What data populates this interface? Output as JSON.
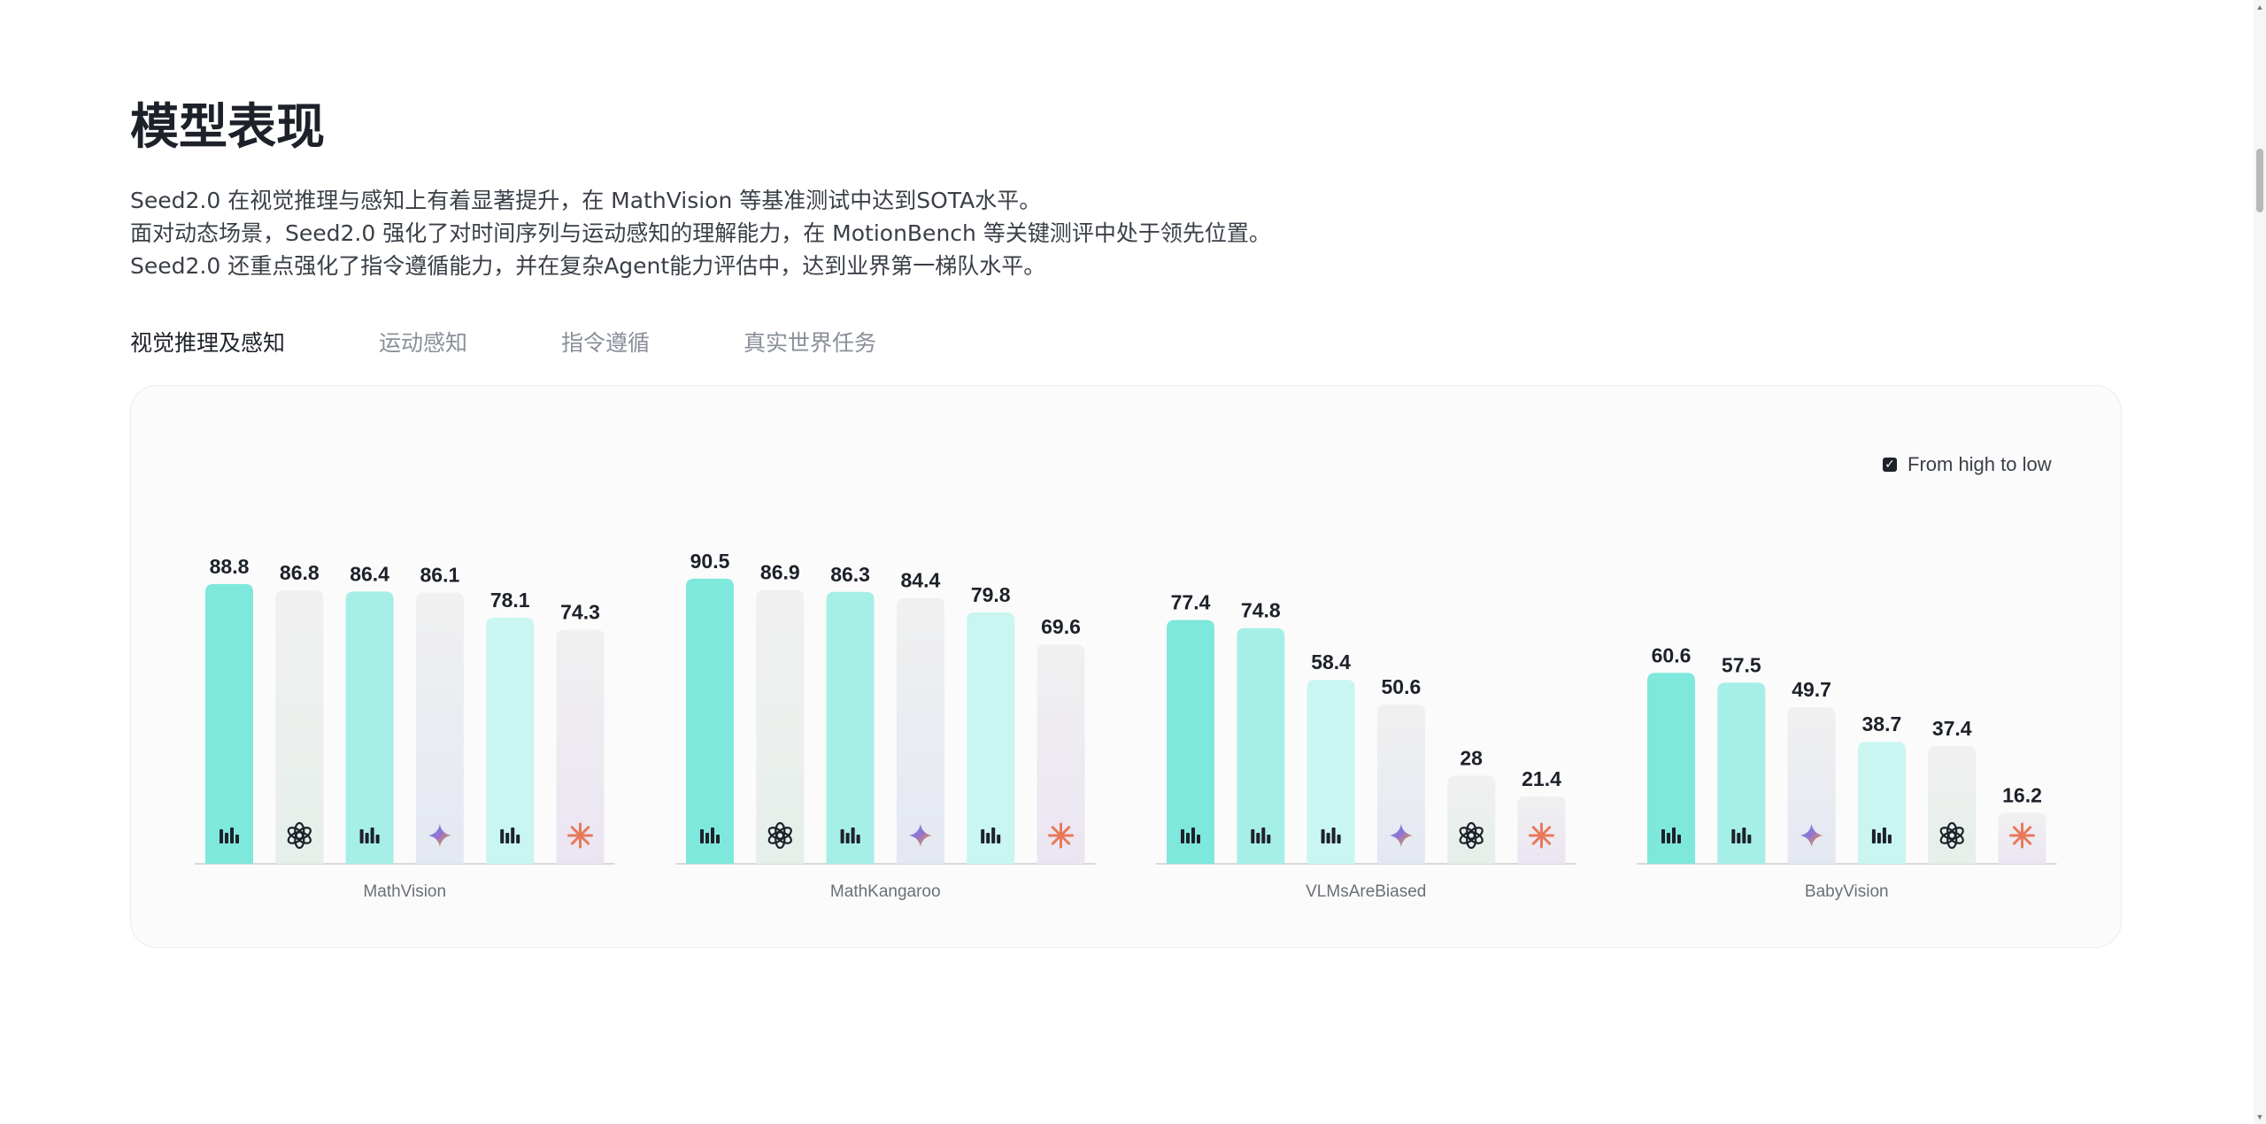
{
  "section": {
    "title": "模型表现",
    "intro": [
      "Seed2.0 在视觉推理与感知上有着显著提升，在 MathVision 等基准测试中达到SOTA水平。",
      "面对动态场景，Seed2.0 强化了对时间序列与运动感知的理解能力，在 MotionBench 等关键测评中处于领先位置。",
      "Seed2.0 还重点强化了指令遵循能力，并在复杂Agent能力评估中，达到业界第一梯队水平。"
    ]
  },
  "tabs": [
    {
      "label": "视觉推理及感知",
      "active": true
    },
    {
      "label": "运动感知",
      "active": false
    },
    {
      "label": "指令遵循",
      "active": false
    },
    {
      "label": "真实世界任务",
      "active": false
    }
  ],
  "sort": {
    "label": "From high to low",
    "checked": true
  },
  "colors": {
    "seed_primary": "#7ee8dd",
    "seed_secondary": "#a6efe7",
    "seed_tertiary": "#c9f6f1",
    "openai": "#eceeed",
    "gemini": "#eaebf0",
    "claude": "#ece9f1",
    "claude_icon": "#e8795a"
  },
  "chart_data": {
    "type": "bar",
    "ylim": [
      0,
      100
    ],
    "groups": [
      {
        "category": "MathVision",
        "bars": [
          {
            "value": 88.8,
            "icon": "seed-icon",
            "style": "seed_primary"
          },
          {
            "value": 86.8,
            "icon": "openai-icon",
            "style": "openai"
          },
          {
            "value": 86.4,
            "icon": "seed-icon",
            "style": "seed_secondary"
          },
          {
            "value": 86.1,
            "icon": "gemini-icon",
            "style": "gemini"
          },
          {
            "value": 78.1,
            "icon": "seed-icon",
            "style": "seed_tertiary"
          },
          {
            "value": 74.3,
            "icon": "claude-icon",
            "style": "claude"
          }
        ]
      },
      {
        "category": "MathKangaroo",
        "bars": [
          {
            "value": 90.5,
            "icon": "seed-icon",
            "style": "seed_primary"
          },
          {
            "value": 86.9,
            "icon": "openai-icon",
            "style": "openai"
          },
          {
            "value": 86.3,
            "icon": "seed-icon",
            "style": "seed_secondary"
          },
          {
            "value": 84.4,
            "icon": "gemini-icon",
            "style": "gemini"
          },
          {
            "value": 79.8,
            "icon": "seed-icon",
            "style": "seed_tertiary"
          },
          {
            "value": 69.6,
            "icon": "claude-icon",
            "style": "claude"
          }
        ]
      },
      {
        "category": "VLMsAreBiased",
        "bars": [
          {
            "value": 77.4,
            "icon": "seed-icon",
            "style": "seed_primary"
          },
          {
            "value": 74.8,
            "icon": "seed-icon",
            "style": "seed_secondary"
          },
          {
            "value": 58.4,
            "icon": "seed-icon",
            "style": "seed_tertiary"
          },
          {
            "value": 50.6,
            "icon": "gemini-icon",
            "style": "gemini"
          },
          {
            "value": 28,
            "icon": "openai-icon",
            "style": "openai"
          },
          {
            "value": 21.4,
            "icon": "claude-icon",
            "style": "claude"
          }
        ]
      },
      {
        "category": "BabyVision",
        "bars": [
          {
            "value": 60.6,
            "icon": "seed-icon",
            "style": "seed_primary"
          },
          {
            "value": 57.5,
            "icon": "seed-icon",
            "style": "seed_secondary"
          },
          {
            "value": 49.7,
            "icon": "gemini-icon",
            "style": "gemini"
          },
          {
            "value": 38.7,
            "icon": "seed-icon",
            "style": "seed_tertiary"
          },
          {
            "value": 37.4,
            "icon": "openai-icon",
            "style": "openai"
          },
          {
            "value": 16.2,
            "icon": "claude-icon",
            "style": "claude"
          }
        ]
      }
    ]
  }
}
